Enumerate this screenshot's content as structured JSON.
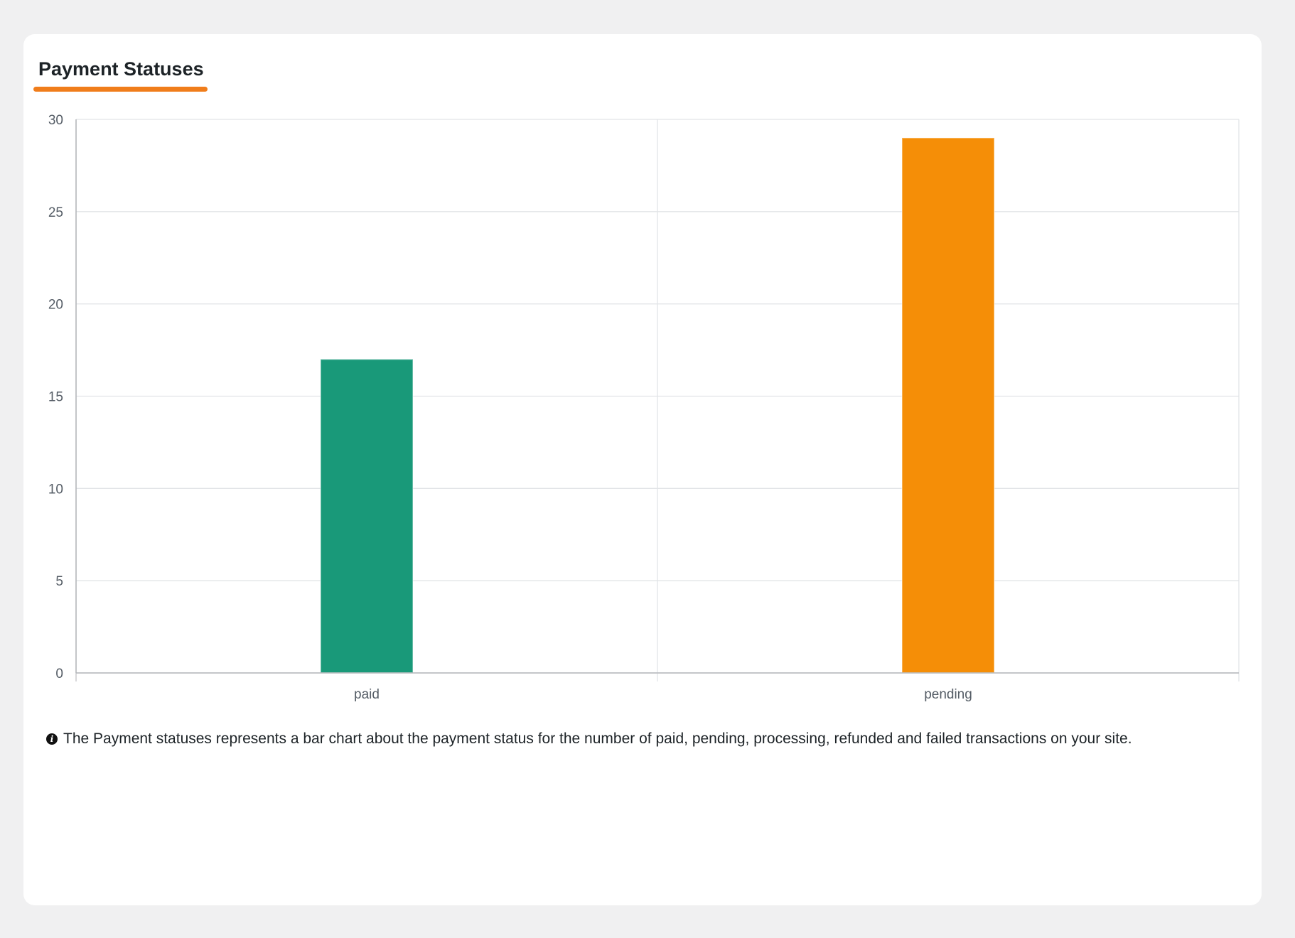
{
  "card": {
    "title": "Payment Statuses",
    "accent_color": "#f07d1b"
  },
  "note": {
    "icon": "info-icon",
    "text": "The Payment statuses represents a bar chart about the payment status for the number of paid, pending, processing, refunded and failed transactions on your site."
  },
  "chart_data": {
    "type": "bar",
    "title": "",
    "xlabel": "",
    "ylabel": "",
    "categories": [
      "paid",
      "pending"
    ],
    "values": [
      17,
      29
    ],
    "colors": [
      "#199979",
      "#f58e07"
    ],
    "ylim": [
      0,
      30
    ],
    "yticks": [
      0,
      5,
      10,
      15,
      20,
      25,
      30
    ],
    "grid": true,
    "legend": "none"
  }
}
